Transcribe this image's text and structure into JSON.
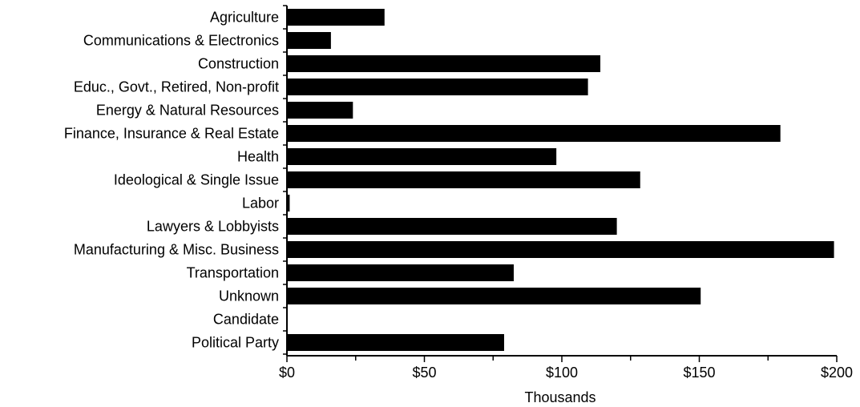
{
  "chart_data": {
    "type": "bar",
    "orientation": "horizontal",
    "categories": [
      "Agriculture",
      "Communications & Electronics",
      "Construction",
      "Educ., Govt., Retired, Non-profit",
      "Energy & Natural Resources",
      "Finance, Insurance & Real Estate",
      "Health",
      "Ideological & Single Issue",
      "Labor",
      "Lawyers & Lobbyists",
      "Manufacturing & Misc. Business",
      "Transportation",
      "Unknown",
      "Candidate",
      "Political Party"
    ],
    "values": [
      35.5,
      16,
      114,
      109.5,
      24,
      179.5,
      98,
      128.5,
      1,
      120,
      199,
      82.5,
      150.5,
      0,
      79
    ],
    "xlabel": "Thousands",
    "ylabel": "",
    "xlim": [
      0,
      200
    ],
    "x_ticks": [
      "$0",
      "$50",
      "$100",
      "$150",
      "$200"
    ],
    "x_tick_values": [
      0,
      50,
      100,
      150,
      200
    ],
    "grid": false,
    "bar_color": "#000000"
  }
}
